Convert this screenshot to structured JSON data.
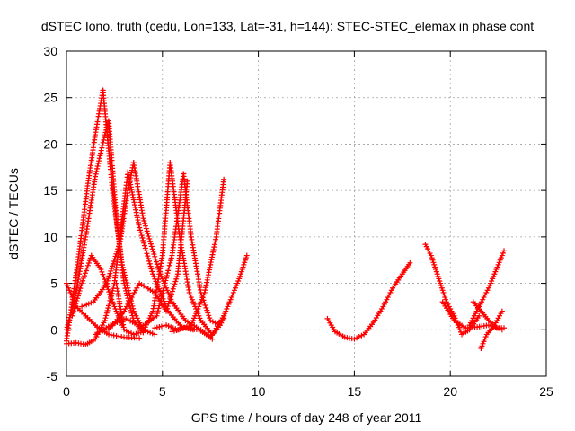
{
  "chart_data": {
    "type": "scatter",
    "title": "dSTEC Iono. truth (cedu, Lon=133, Lat=-31, h=144): STEC-STEC_elemax in phase cont",
    "xlabel": "GPS time / hours of day 248 of year 2011",
    "ylabel": "dSTEC  / TECUs",
    "xlim": [
      0,
      25
    ],
    "ylim": [
      -5,
      30
    ],
    "xticks": [
      0,
      5,
      10,
      15,
      20,
      25
    ],
    "yticks": [
      -5,
      0,
      5,
      10,
      15,
      20,
      25,
      30
    ],
    "grid": true,
    "marker": "plus",
    "color": "#ff0000",
    "series": [
      {
        "x": [
          0.0,
          0.3,
          0.7,
          1.1,
          1.5,
          1.9
        ],
        "y": [
          -1.2,
          3.0,
          9.0,
          15.5,
          21.0,
          25.8
        ]
      },
      {
        "x": [
          1.9,
          2.4,
          2.9,
          3.5,
          4.0,
          4.6
        ],
        "y": [
          25.8,
          15.0,
          7.0,
          2.0,
          0.0,
          -0.5
        ]
      },
      {
        "x": [
          0.0,
          0.5,
          1.0,
          1.5,
          2.0,
          2.2
        ],
        "y": [
          0.0,
          4.0,
          10.0,
          16.5,
          21.0,
          22.5
        ]
      },
      {
        "x": [
          2.2,
          2.6,
          3.0,
          3.5,
          4.0
        ],
        "y": [
          22.5,
          12.0,
          5.0,
          1.0,
          -0.3
        ]
      },
      {
        "x": [
          0.0,
          0.5,
          1.0,
          1.6,
          2.2,
          3.0,
          3.8
        ],
        "y": [
          5.0,
          2.5,
          1.5,
          0.3,
          -0.5,
          -0.8,
          -0.9
        ]
      },
      {
        "x": [
          0.0,
          0.5,
          1.0,
          1.5,
          2.0,
          2.5,
          3.2
        ],
        "y": [
          -1.5,
          -1.4,
          -1.6,
          -1.0,
          1.0,
          5.0,
          17.0
        ]
      },
      {
        "x": [
          3.2,
          3.8,
          4.5,
          5.3,
          6.0,
          6.6
        ],
        "y": [
          17.0,
          11.0,
          6.0,
          2.0,
          0.3,
          0.0
        ]
      },
      {
        "x": [
          0.8,
          1.4,
          2.1,
          2.8,
          3.2,
          3.5
        ],
        "y": [
          2.5,
          3.0,
          5.0,
          9.5,
          15.0,
          18.0
        ]
      },
      {
        "x": [
          3.5,
          4.0,
          4.8,
          5.5,
          6.2,
          7.0,
          7.6
        ],
        "y": [
          18.0,
          12.0,
          6.5,
          3.0,
          1.0,
          0.0,
          -1.0
        ]
      },
      {
        "x": [
          0.3,
          0.8,
          1.3,
          1.8,
          2.4,
          2.9
        ],
        "y": [
          1.5,
          5.0,
          8.0,
          6.5,
          3.0,
          0.5
        ]
      },
      {
        "x": [
          2.6,
          3.0,
          3.5,
          4.0,
          4.5,
          5.0,
          5.4
        ],
        "y": [
          5.0,
          0.0,
          -0.5,
          -0.2,
          2.0,
          8.0,
          18.0
        ]
      },
      {
        "x": [
          5.4,
          5.9,
          6.4,
          7.0,
          7.6,
          8.2
        ],
        "y": [
          18.0,
          10.0,
          4.0,
          1.0,
          -0.5,
          1.5
        ]
      },
      {
        "x": [
          1.5,
          2.3,
          3.1,
          3.9,
          4.7,
          5.5,
          6.1
        ],
        "y": [
          -0.5,
          0.5,
          1.2,
          0.3,
          1.5,
          8.0,
          16.8
        ]
      },
      {
        "x": [
          6.1,
          6.5,
          7.0,
          7.5,
          8.0,
          8.2
        ],
        "y": [
          16.8,
          10.0,
          4.0,
          1.0,
          0.5,
          1.2
        ]
      },
      {
        "x": [
          2.2,
          3.0,
          3.8,
          4.6,
          5.2,
          5.8,
          6.3
        ],
        "y": [
          0.0,
          2.0,
          5.0,
          4.0,
          2.0,
          6.0,
          16.0
        ]
      },
      {
        "x": [
          4.6,
          5.2,
          5.8,
          6.5,
          7.2,
          7.8,
          8.2
        ],
        "y": [
          0.2,
          0.5,
          0.0,
          0.5,
          4.0,
          10.0,
          16.2
        ]
      },
      {
        "x": [
          5.5,
          6.2,
          6.9,
          7.5,
          8.0,
          8.5,
          9.0,
          9.4
        ],
        "y": [
          -0.2,
          0.2,
          0.0,
          -0.8,
          0.5,
          3.0,
          5.5,
          8.0
        ]
      },
      {
        "x": [
          13.6,
          14.0,
          14.5,
          15.0,
          15.5,
          16.0,
          16.5,
          17.0,
          17.5,
          17.9
        ],
        "y": [
          1.2,
          -0.2,
          -0.8,
          -1.0,
          -0.5,
          0.8,
          2.5,
          4.5,
          6.0,
          7.2
        ]
      },
      {
        "x": [
          18.7,
          19.0,
          19.4,
          19.8,
          20.2,
          20.6,
          21.0,
          21.5
        ],
        "y": [
          9.2,
          8.0,
          5.5,
          3.0,
          1.5,
          -0.5,
          0.0,
          1.5
        ]
      },
      {
        "x": [
          19.6,
          20.2,
          20.8,
          21.4,
          22.0,
          22.7
        ],
        "y": [
          3.0,
          1.0,
          0.2,
          0.3,
          0.5,
          0.0
        ]
      },
      {
        "x": [
          21.0,
          21.5,
          22.0,
          22.5,
          22.8
        ],
        "y": [
          0.5,
          2.5,
          4.5,
          7.0,
          8.5
        ]
      },
      {
        "x": [
          21.6,
          21.9,
          22.3,
          22.7
        ],
        "y": [
          -2.0,
          -0.5,
          0.5,
          2.0
        ]
      },
      {
        "x": [
          21.2,
          21.6,
          22.0,
          22.4,
          22.8
        ],
        "y": [
          3.0,
          2.0,
          1.0,
          0.2,
          0.2
        ]
      }
    ]
  }
}
